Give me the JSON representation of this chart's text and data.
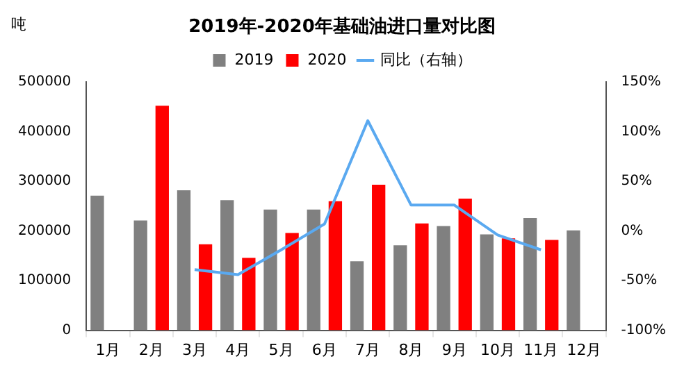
{
  "chart_data": {
    "type": "bar",
    "title": "2019年-2020年基础油进口量对比图",
    "ylabel": "吨",
    "categories": [
      "1月",
      "2月",
      "3月",
      "4月",
      "5月",
      "6月",
      "7月",
      "8月",
      "9月",
      "10月",
      "11月",
      "12月"
    ],
    "series": [
      {
        "name": "2019",
        "color": "#808080",
        "values": [
          271000,
          221000,
          282000,
          262000,
          243000,
          243000,
          139000,
          171000,
          210000,
          193000,
          226000,
          201000
        ]
      },
      {
        "name": "2020",
        "color": "#ff0000",
        "values": [
          null,
          452000,
          173000,
          146000,
          196000,
          260000,
          293000,
          215000,
          265000,
          185000,
          182000,
          null
        ]
      },
      {
        "name": "同比（右轴）",
        "type": "line",
        "axis": "y2",
        "color": "#5aa9f0",
        "values": [
          null,
          null,
          -39,
          -44,
          -19,
          7,
          111,
          26,
          26,
          -4,
          -19,
          null
        ]
      }
    ],
    "ylim": [
      0,
      500000
    ],
    "yticks": [
      0,
      100000,
      200000,
      300000,
      400000,
      500000
    ],
    "y2lim": [
      -100,
      150
    ],
    "y2ticks": [
      {
        "value": -100,
        "label": "-100%"
      },
      {
        "value": -50,
        "label": "-50%"
      },
      {
        "value": 0,
        "label": "0%"
      },
      {
        "value": 50,
        "label": "50%"
      },
      {
        "value": 100,
        "label": "100%"
      },
      {
        "value": 150,
        "label": "150%"
      }
    ],
    "grid": false,
    "legend": "top",
    "marker": "none",
    "line_style": "solid"
  }
}
